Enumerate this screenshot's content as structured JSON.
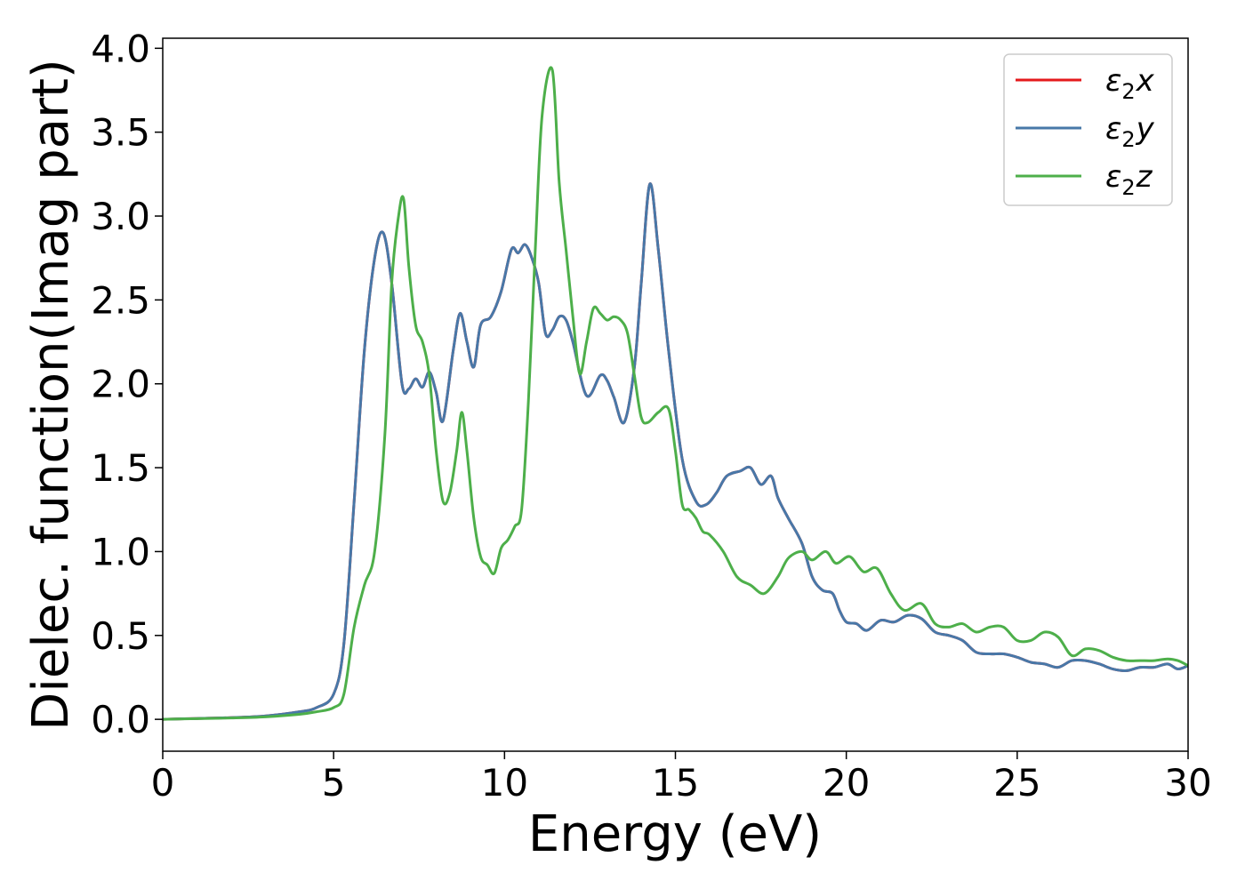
{
  "chart_data": {
    "type": "line",
    "title": "",
    "xlabel": "Energy (eV)",
    "ylabel": "Dielec. function(Imag part)",
    "xlim": [
      0,
      30
    ],
    "ylim": [
      -0.19,
      4.06
    ],
    "xticks": [
      "0",
      "5",
      "10",
      "15",
      "20",
      "25",
      "30"
    ],
    "yticks": [
      "0.0",
      "0.5",
      "1.0",
      "1.5",
      "2.0",
      "2.5",
      "3.0",
      "3.5",
      "4.0"
    ],
    "grid": false,
    "legend_position": "top-right",
    "series": [
      {
        "name": "ε2x",
        "base": "ε",
        "sub": "2",
        "axis": "x",
        "color": "#e41a1c",
        "x": [
          0,
          1,
          2,
          3,
          4,
          4.5,
          5.0,
          5.3,
          5.6,
          5.9,
          6.2,
          6.45,
          6.7,
          7.0,
          7.2,
          7.4,
          7.6,
          7.8,
          8.0,
          8.2,
          8.5,
          8.7,
          8.9,
          9.1,
          9.3,
          9.6,
          9.9,
          10.2,
          10.4,
          10.6,
          10.8,
          11.0,
          11.2,
          11.4,
          11.6,
          11.8,
          12.0,
          12.4,
          12.8,
          13.0,
          13.2,
          13.5,
          13.8,
          14.0,
          14.25,
          14.5,
          14.8,
          15.2,
          15.6,
          15.9,
          16.2,
          16.5,
          16.9,
          17.2,
          17.5,
          17.8,
          18.0,
          18.3,
          18.7,
          19.0,
          19.3,
          19.6,
          19.8,
          20.0,
          20.3,
          20.6,
          21.0,
          21.4,
          21.8,
          22.2,
          22.6,
          23.0,
          23.4,
          23.8,
          24.2,
          24.6,
          25.0,
          25.4,
          25.8,
          26.2,
          26.6,
          27.0,
          27.4,
          27.8,
          28.2,
          28.6,
          29.0,
          29.4,
          29.7,
          30.0
        ],
        "y": [
          0.0,
          0.005,
          0.01,
          0.02,
          0.045,
          0.07,
          0.15,
          0.45,
          1.3,
          2.2,
          2.75,
          2.9,
          2.6,
          2.0,
          1.97,
          2.03,
          1.98,
          2.07,
          1.95,
          1.78,
          2.2,
          2.42,
          2.25,
          2.1,
          2.35,
          2.4,
          2.55,
          2.8,
          2.78,
          2.83,
          2.75,
          2.6,
          2.3,
          2.32,
          2.4,
          2.38,
          2.25,
          1.93,
          2.05,
          2.02,
          1.92,
          1.77,
          2.1,
          2.6,
          3.19,
          2.8,
          2.2,
          1.55,
          1.3,
          1.28,
          1.35,
          1.45,
          1.48,
          1.5,
          1.4,
          1.45,
          1.32,
          1.2,
          1.05,
          0.85,
          0.77,
          0.75,
          0.65,
          0.58,
          0.57,
          0.53,
          0.59,
          0.58,
          0.62,
          0.6,
          0.52,
          0.5,
          0.47,
          0.4,
          0.39,
          0.39,
          0.37,
          0.34,
          0.33,
          0.31,
          0.35,
          0.35,
          0.33,
          0.3,
          0.29,
          0.31,
          0.31,
          0.33,
          0.3,
          0.32
        ]
      },
      {
        "name": "ε2y",
        "base": "ε",
        "sub": "2",
        "axis": "y",
        "color": "#4878a8",
        "x": [
          0,
          1,
          2,
          3,
          4,
          4.5,
          5.0,
          5.3,
          5.6,
          5.9,
          6.2,
          6.45,
          6.7,
          7.0,
          7.2,
          7.4,
          7.6,
          7.8,
          8.0,
          8.2,
          8.5,
          8.7,
          8.9,
          9.1,
          9.3,
          9.6,
          9.9,
          10.2,
          10.4,
          10.6,
          10.8,
          11.0,
          11.2,
          11.4,
          11.6,
          11.8,
          12.0,
          12.4,
          12.8,
          13.0,
          13.2,
          13.5,
          13.8,
          14.0,
          14.25,
          14.5,
          14.8,
          15.2,
          15.6,
          15.9,
          16.2,
          16.5,
          16.9,
          17.2,
          17.5,
          17.8,
          18.0,
          18.3,
          18.7,
          19.0,
          19.3,
          19.6,
          19.8,
          20.0,
          20.3,
          20.6,
          21.0,
          21.4,
          21.8,
          22.2,
          22.6,
          23.0,
          23.4,
          23.8,
          24.2,
          24.6,
          25.0,
          25.4,
          25.8,
          26.2,
          26.6,
          27.0,
          27.4,
          27.8,
          28.2,
          28.6,
          29.0,
          29.4,
          29.7,
          30.0
        ],
        "y": [
          0.0,
          0.005,
          0.01,
          0.02,
          0.045,
          0.07,
          0.15,
          0.45,
          1.3,
          2.2,
          2.75,
          2.9,
          2.6,
          2.0,
          1.97,
          2.03,
          1.98,
          2.07,
          1.95,
          1.78,
          2.2,
          2.42,
          2.25,
          2.1,
          2.35,
          2.4,
          2.55,
          2.8,
          2.78,
          2.83,
          2.75,
          2.6,
          2.3,
          2.32,
          2.4,
          2.38,
          2.25,
          1.93,
          2.05,
          2.02,
          1.92,
          1.77,
          2.1,
          2.6,
          3.19,
          2.8,
          2.2,
          1.55,
          1.3,
          1.28,
          1.35,
          1.45,
          1.48,
          1.5,
          1.4,
          1.45,
          1.32,
          1.2,
          1.05,
          0.85,
          0.77,
          0.75,
          0.65,
          0.58,
          0.57,
          0.53,
          0.59,
          0.58,
          0.62,
          0.6,
          0.52,
          0.5,
          0.47,
          0.4,
          0.39,
          0.39,
          0.37,
          0.34,
          0.33,
          0.31,
          0.35,
          0.35,
          0.33,
          0.3,
          0.29,
          0.31,
          0.31,
          0.33,
          0.3,
          0.32
        ]
      },
      {
        "name": "ε2z",
        "base": "ε",
        "sub": "2",
        "axis": "z",
        "color": "#4daf4a",
        "x": [
          0,
          1,
          2,
          3,
          4,
          4.5,
          5.0,
          5.3,
          5.6,
          5.9,
          6.2,
          6.5,
          6.7,
          6.9,
          7.05,
          7.2,
          7.4,
          7.6,
          7.8,
          8.0,
          8.2,
          8.4,
          8.6,
          8.75,
          8.9,
          9.1,
          9.3,
          9.5,
          9.7,
          9.9,
          10.1,
          10.3,
          10.5,
          10.7,
          10.9,
          11.1,
          11.4,
          11.6,
          11.8,
          12.0,
          12.2,
          12.4,
          12.6,
          12.8,
          13.0,
          13.2,
          13.4,
          13.6,
          13.8,
          14.0,
          14.2,
          14.5,
          14.8,
          15.0,
          15.2,
          15.4,
          15.6,
          15.8,
          16.0,
          16.4,
          16.8,
          17.2,
          17.6,
          18.0,
          18.3,
          18.7,
          19.0,
          19.4,
          19.7,
          20.1,
          20.5,
          20.9,
          21.3,
          21.7,
          22.2,
          22.6,
          23.0,
          23.4,
          23.8,
          24.2,
          24.6,
          25.0,
          25.4,
          25.8,
          26.2,
          26.6,
          27.0,
          27.4,
          27.8,
          28.2,
          28.6,
          29.0,
          29.4,
          29.7,
          30.0
        ],
        "y": [
          0.0,
          0.004,
          0.008,
          0.015,
          0.03,
          0.045,
          0.07,
          0.15,
          0.55,
          0.8,
          1.0,
          1.7,
          2.6,
          3.0,
          3.1,
          2.7,
          2.35,
          2.25,
          2.05,
          1.6,
          1.3,
          1.35,
          1.6,
          1.83,
          1.6,
          1.2,
          0.97,
          0.92,
          0.87,
          1.02,
          1.07,
          1.15,
          1.25,
          1.9,
          2.8,
          3.6,
          3.87,
          3.2,
          2.8,
          2.4,
          2.06,
          2.25,
          2.45,
          2.42,
          2.38,
          2.4,
          2.38,
          2.3,
          2.05,
          1.8,
          1.77,
          1.83,
          1.85,
          1.6,
          1.28,
          1.25,
          1.2,
          1.12,
          1.1,
          1.0,
          0.85,
          0.8,
          0.75,
          0.85,
          0.96,
          1.0,
          0.95,
          1.0,
          0.93,
          0.97,
          0.88,
          0.9,
          0.75,
          0.65,
          0.69,
          0.57,
          0.55,
          0.57,
          0.52,
          0.55,
          0.55,
          0.47,
          0.47,
          0.52,
          0.49,
          0.38,
          0.42,
          0.41,
          0.37,
          0.35,
          0.35,
          0.35,
          0.36,
          0.35,
          0.32
        ]
      }
    ]
  }
}
